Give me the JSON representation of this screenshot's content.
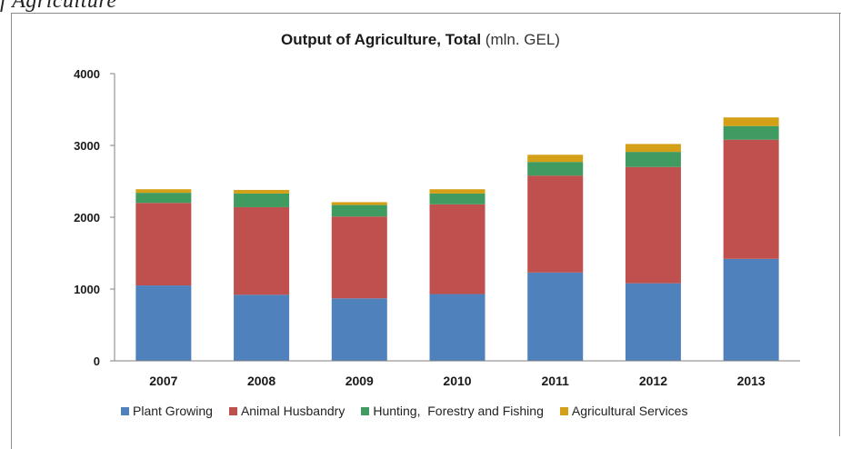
{
  "top_fragment": "f Agriculture",
  "chart_data": {
    "type": "bar",
    "stacked": true,
    "title": "Output of Agriculture, Total",
    "title_unit": "(mln. GEL)",
    "xlabel": "",
    "ylabel": "",
    "categories": [
      "2007",
      "2008",
      "2009",
      "2010",
      "2011",
      "2012",
      "2013"
    ],
    "ylim": [
      0,
      4000
    ],
    "yticks": [
      0,
      1000,
      2000,
      3000,
      4000
    ],
    "grid": false,
    "legend_position": "bottom",
    "series": [
      {
        "name": "Plant Growing",
        "color": "#4f81bd",
        "values": [
          1050,
          920,
          870,
          930,
          1230,
          1080,
          1420
        ]
      },
      {
        "name": "Animal Husbandry",
        "color": "#c0504d",
        "values": [
          1150,
          1220,
          1140,
          1250,
          1350,
          1620,
          1660
        ]
      },
      {
        "name": "Hunting,  Forestry and Fishing",
        "color": "#3f9b5f",
        "values": [
          140,
          190,
          160,
          150,
          190,
          210,
          190
        ]
      },
      {
        "name": "Agricultural Services",
        "color": "#d4a017",
        "values": [
          50,
          50,
          40,
          60,
          100,
          110,
          120
        ]
      }
    ]
  }
}
